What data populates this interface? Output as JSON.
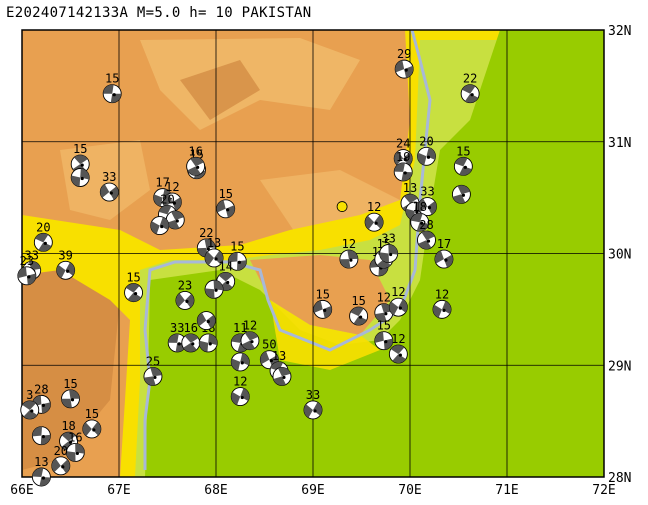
{
  "header": {
    "title": "E202407142133A  M=5.0  h= 10  PAKISTAN"
  },
  "axes": {
    "lon_labels": [
      "66E",
      "67E",
      "68E",
      "69E",
      "70E",
      "71E",
      "72E"
    ],
    "lat_labels": [
      "32N",
      "31N",
      "30N",
      "29N",
      "28N"
    ],
    "lon_range": [
      66,
      72
    ],
    "lat_range": [
      28,
      32
    ],
    "grid": true
  },
  "colors": {
    "highland": "#e8a050",
    "highland_dark": "#d08840",
    "plateau": "#f0b868",
    "foothill": "#f8e000",
    "plain_light": "#c8e040",
    "plain": "#98cc00",
    "river": "#a8b8d8",
    "epicenter": "#f8e000",
    "grid": "#000000"
  },
  "epicenter": {
    "lon": 69.3,
    "lat": 30.42,
    "marker": "yellow-circle"
  },
  "mechanisms": [
    {
      "lon": 66.93,
      "lat": 31.43,
      "depth": "15"
    },
    {
      "lon": 66.6,
      "lat": 30.8,
      "depth": "15"
    },
    {
      "lon": 66.6,
      "lat": 30.68,
      "depth": ""
    },
    {
      "lon": 66.9,
      "lat": 30.55,
      "depth": "33"
    },
    {
      "lon": 67.8,
      "lat": 30.75,
      "depth": "15"
    },
    {
      "lon": 67.79,
      "lat": 30.78,
      "depth": "16"
    },
    {
      "lon": 67.45,
      "lat": 30.5,
      "depth": "17"
    },
    {
      "lon": 67.55,
      "lat": 30.46,
      "depth": "12"
    },
    {
      "lon": 67.5,
      "lat": 30.35,
      "depth": "20"
    },
    {
      "lon": 67.58,
      "lat": 30.3,
      "depth": ""
    },
    {
      "lon": 67.42,
      "lat": 30.25,
      "depth": ""
    },
    {
      "lon": 68.1,
      "lat": 30.4,
      "depth": "15"
    },
    {
      "lon": 66.22,
      "lat": 30.1,
      "depth": "20"
    },
    {
      "lon": 66.1,
      "lat": 29.85,
      "depth": "33"
    },
    {
      "lon": 66.45,
      "lat": 29.85,
      "depth": "39"
    },
    {
      "lon": 66.05,
      "lat": 29.8,
      "depth": "23"
    },
    {
      "lon": 67.15,
      "lat": 29.65,
      "depth": "15"
    },
    {
      "lon": 67.9,
      "lat": 30.05,
      "depth": "22"
    },
    {
      "lon": 67.98,
      "lat": 29.96,
      "depth": "13"
    },
    {
      "lon": 68.22,
      "lat": 29.93,
      "depth": "15"
    },
    {
      "lon": 68.1,
      "lat": 29.75,
      "depth": "14"
    },
    {
      "lon": 67.98,
      "lat": 29.68,
      "depth": ""
    },
    {
      "lon": 67.68,
      "lat": 29.58,
      "depth": "23"
    },
    {
      "lon": 67.6,
      "lat": 29.2,
      "depth": "33"
    },
    {
      "lon": 67.74,
      "lat": 29.2,
      "depth": "16"
    },
    {
      "lon": 67.92,
      "lat": 29.2,
      "depth": "18"
    },
    {
      "lon": 67.9,
      "lat": 29.4,
      "depth": ""
    },
    {
      "lon": 68.25,
      "lat": 29.2,
      "depth": "11"
    },
    {
      "lon": 68.35,
      "lat": 29.22,
      "depth": "12"
    },
    {
      "lon": 68.25,
      "lat": 29.03,
      "depth": ""
    },
    {
      "lon": 68.55,
      "lat": 29.05,
      "depth": "50"
    },
    {
      "lon": 68.65,
      "lat": 28.95,
      "depth": "13"
    },
    {
      "lon": 68.68,
      "lat": 28.9,
      "depth": ""
    },
    {
      "lon": 68.25,
      "lat": 28.72,
      "depth": "12"
    },
    {
      "lon": 69.1,
      "lat": 29.5,
      "depth": "15"
    },
    {
      "lon": 69.47,
      "lat": 29.44,
      "depth": "15"
    },
    {
      "lon": 69.73,
      "lat": 29.47,
      "depth": "12"
    },
    {
      "lon": 69.88,
      "lat": 29.52,
      "depth": "12"
    },
    {
      "lon": 69.73,
      "lat": 29.22,
      "depth": "15"
    },
    {
      "lon": 69.88,
      "lat": 29.1,
      "depth": "12"
    },
    {
      "lon": 69.37,
      "lat": 29.95,
      "depth": "12"
    },
    {
      "lon": 69.63,
      "lat": 30.28,
      "depth": "12"
    },
    {
      "lon": 69.68,
      "lat": 29.88,
      "depth": "13"
    },
    {
      "lon": 69.73,
      "lat": 29.95,
      "depth": "15"
    },
    {
      "lon": 69.78,
      "lat": 30.0,
      "depth": "33"
    },
    {
      "lon": 69.93,
      "lat": 30.85,
      "depth": "24"
    },
    {
      "lon": 69.93,
      "lat": 30.73,
      "depth": "19"
    },
    {
      "lon": 70.0,
      "lat": 30.45,
      "depth": "13"
    },
    {
      "lon": 70.05,
      "lat": 30.38,
      "depth": ""
    },
    {
      "lon": 70.18,
      "lat": 30.42,
      "depth": "33"
    },
    {
      "lon": 70.1,
      "lat": 30.28,
      "depth": "18"
    },
    {
      "lon": 70.17,
      "lat": 30.12,
      "depth": "28"
    },
    {
      "lon": 70.17,
      "lat": 30.87,
      "depth": "20"
    },
    {
      "lon": 70.35,
      "lat": 29.95,
      "depth": "17"
    },
    {
      "lon": 70.55,
      "lat": 30.78,
      "depth": "15"
    },
    {
      "lon": 70.53,
      "lat": 30.53,
      "depth": ""
    },
    {
      "lon": 70.33,
      "lat": 29.5,
      "depth": "12"
    },
    {
      "lon": 69.94,
      "lat": 31.65,
      "depth": "29"
    },
    {
      "lon": 70.62,
      "lat": 31.43,
      "depth": "22"
    },
    {
      "lon": 67.35,
      "lat": 28.9,
      "depth": "25"
    },
    {
      "lon": 69.0,
      "lat": 28.6,
      "depth": "33"
    },
    {
      "lon": 66.2,
      "lat": 28.65,
      "depth": "28"
    },
    {
      "lon": 66.08,
      "lat": 28.6,
      "depth": "3"
    },
    {
      "lon": 66.5,
      "lat": 28.7,
      "depth": "15"
    },
    {
      "lon": 66.72,
      "lat": 28.43,
      "depth": "15"
    },
    {
      "lon": 66.2,
      "lat": 28.37,
      "depth": ""
    },
    {
      "lon": 66.48,
      "lat": 28.32,
      "depth": "18"
    },
    {
      "lon": 66.55,
      "lat": 28.22,
      "depth": "16"
    },
    {
      "lon": 66.4,
      "lat": 28.1,
      "depth": "20"
    },
    {
      "lon": 66.2,
      "lat": 28.0,
      "depth": "13"
    }
  ]
}
